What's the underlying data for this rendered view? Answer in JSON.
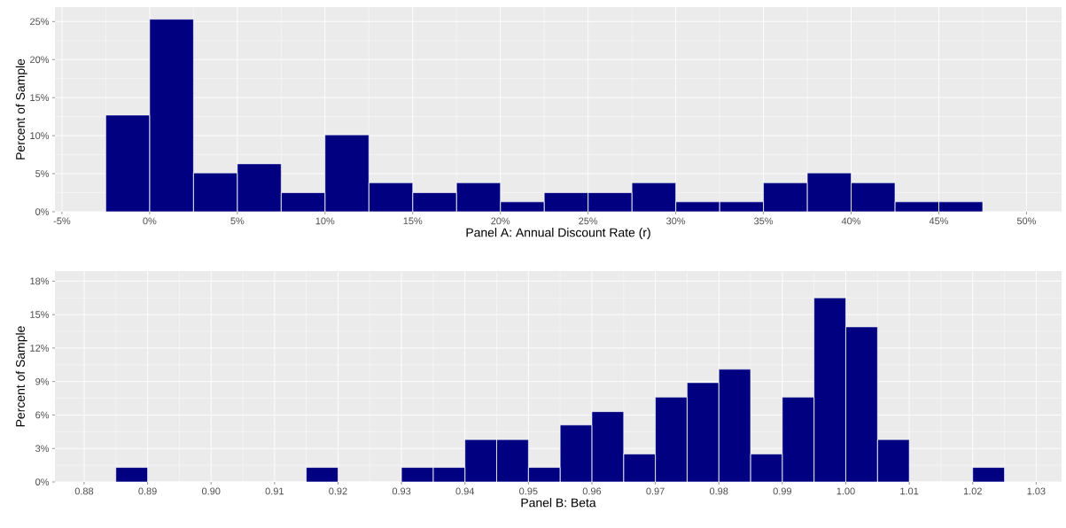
{
  "chart_data": [
    {
      "type": "histogram",
      "xlabel": "Panel A: Annual Discount Rate (r)",
      "ylabel": "Percent of Sample",
      "color": "#000080",
      "grid": true,
      "bins": [
        -2.5,
        0,
        2.5,
        5,
        7.5,
        10,
        12.5,
        15,
        17.5,
        20,
        22.5,
        25,
        27.5,
        30,
        32.5,
        35,
        37.5,
        40,
        42.5,
        45,
        47.5
      ],
      "values": [
        12.7,
        25.3,
        5.1,
        6.3,
        2.5,
        10.1,
        3.8,
        2.5,
        3.8,
        1.3,
        2.5,
        2.5,
        3.8,
        1.3,
        1.3,
        3.8,
        5.1,
        3.8,
        1.3,
        1.3
      ],
      "xlim": [
        -5.4,
        52.0
      ],
      "ylim": [
        0,
        26.9
      ],
      "xticks": [
        {
          "value": -5,
          "label": "-5%"
        },
        {
          "value": 0,
          "label": "0%"
        },
        {
          "value": 5,
          "label": "5%"
        },
        {
          "value": 10,
          "label": "10%"
        },
        {
          "value": 15,
          "label": "15%"
        },
        {
          "value": 20,
          "label": "20%"
        },
        {
          "value": 25,
          "label": "25%"
        },
        {
          "value": 30,
          "label": "30%"
        },
        {
          "value": 35,
          "label": "35%"
        },
        {
          "value": 40,
          "label": "40%"
        },
        {
          "value": 45,
          "label": "45%"
        },
        {
          "value": 50,
          "label": "50%"
        }
      ],
      "yticks": [
        {
          "value": 0,
          "label": "0%"
        },
        {
          "value": 5,
          "label": "5%"
        },
        {
          "value": 10,
          "label": "10%"
        },
        {
          "value": 15,
          "label": "15%"
        },
        {
          "value": 20,
          "label": "20%"
        },
        {
          "value": 25,
          "label": "25%"
        }
      ]
    },
    {
      "type": "histogram",
      "xlabel": "Panel B: Beta",
      "ylabel": "Percent of Sample",
      "color": "#000080",
      "grid": true,
      "bins": [
        0.885,
        0.89,
        0.895,
        0.9,
        0.905,
        0.91,
        0.915,
        0.92,
        0.925,
        0.93,
        0.935,
        0.94,
        0.945,
        0.95,
        0.955,
        0.96,
        0.965,
        0.97,
        0.975,
        0.98,
        0.985,
        0.99,
        0.995,
        1.0,
        1.005,
        1.01,
        1.015,
        1.02,
        1.025
      ],
      "values": [
        1.3,
        0,
        0,
        0,
        0,
        0,
        1.3,
        0,
        0,
        1.3,
        1.3,
        3.8,
        3.8,
        1.3,
        5.1,
        6.3,
        2.5,
        7.6,
        8.9,
        10.1,
        2.5,
        7.6,
        16.5,
        13.9,
        3.8,
        0,
        0,
        1.3
      ],
      "xlim": [
        0.8754,
        1.034
      ],
      "ylim": [
        0,
        18.9
      ],
      "xticks": [
        {
          "value": 0.88,
          "label": "0.88"
        },
        {
          "value": 0.89,
          "label": "0.89"
        },
        {
          "value": 0.9,
          "label": "0.90"
        },
        {
          "value": 0.91,
          "label": "0.91"
        },
        {
          "value": 0.92,
          "label": "0.92"
        },
        {
          "value": 0.93,
          "label": "0.93"
        },
        {
          "value": 0.94,
          "label": "0.94"
        },
        {
          "value": 0.95,
          "label": "0.95"
        },
        {
          "value": 0.96,
          "label": "0.96"
        },
        {
          "value": 0.97,
          "label": "0.97"
        },
        {
          "value": 0.98,
          "label": "0.98"
        },
        {
          "value": 0.99,
          "label": "0.99"
        },
        {
          "value": 1.0,
          "label": "1.00"
        },
        {
          "value": 1.01,
          "label": "1.01"
        },
        {
          "value": 1.02,
          "label": "1.02"
        },
        {
          "value": 1.03,
          "label": "1.03"
        }
      ],
      "yticks": [
        {
          "value": 0,
          "label": "0%"
        },
        {
          "value": 3,
          "label": "3%"
        },
        {
          "value": 6,
          "label": "6%"
        },
        {
          "value": 9,
          "label": "9%"
        },
        {
          "value": 12,
          "label": "12%"
        },
        {
          "value": 15,
          "label": "15%"
        },
        {
          "value": 18,
          "label": "18%"
        }
      ]
    }
  ]
}
